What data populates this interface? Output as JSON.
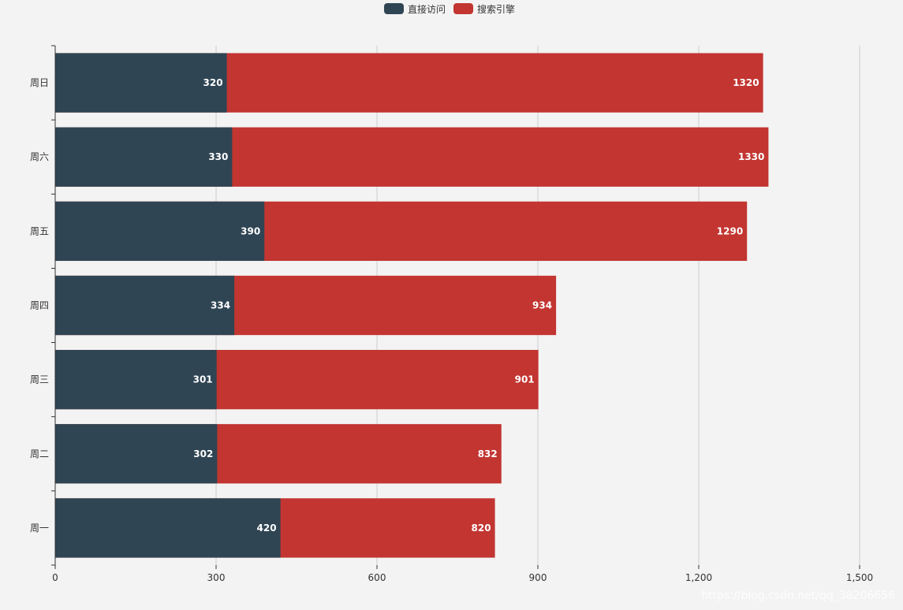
{
  "colors": {
    "background": "#f3f3f3",
    "series_1": "#2f4554",
    "series_2": "#c23531",
    "grid": "#cccccc",
    "axis": "#333333"
  },
  "watermark": "https://blog.csdn.net/qq_38206656",
  "chart_data": {
    "type": "bar",
    "orientation": "horizontal",
    "stacked": false,
    "overlap": true,
    "categories": [
      "周一",
      "周二",
      "周三",
      "周四",
      "周五",
      "周六",
      "周日"
    ],
    "series": [
      {
        "name": "直接访问",
        "values": [
          420,
          302,
          301,
          334,
          390,
          330,
          320
        ]
      },
      {
        "name": "搜索引擎",
        "values": [
          820,
          832,
          901,
          934,
          1290,
          1330,
          1320
        ]
      }
    ],
    "xlim": [
      0,
      1500
    ],
    "xticks": [
      0,
      300,
      600,
      900,
      1200,
      1500
    ],
    "xtick_labels": [
      "0",
      "300",
      "600",
      "900",
      "1,200",
      "1,500"
    ],
    "grid": true,
    "legend_position": "top-center",
    "data_labels": "inside-end"
  }
}
